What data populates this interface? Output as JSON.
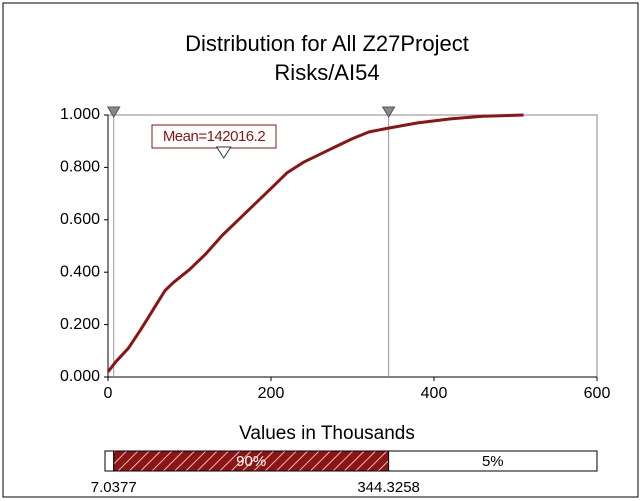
{
  "chart_data": {
    "type": "line",
    "title": [
      "Distribution for All Z27Project",
      "Risks/AI54"
    ],
    "xlabel": "Values in Thousands",
    "x": [
      0,
      10,
      25,
      40,
      50,
      60,
      70,
      80,
      100,
      120,
      140,
      160,
      180,
      200,
      220,
      240,
      260,
      280,
      300,
      320,
      344,
      380,
      420,
      460,
      510
    ],
    "series": [
      {
        "color": "#8b1414",
        "values": [
          0.02,
          0.06,
          0.11,
          0.18,
          0.23,
          0.28,
          0.33,
          0.36,
          0.41,
          0.47,
          0.54,
          0.6,
          0.66,
          0.72,
          0.78,
          0.82,
          0.85,
          0.88,
          0.91,
          0.935,
          0.95,
          0.97,
          0.985,
          0.995,
          1.0
        ]
      }
    ],
    "xlim": [
      0,
      600
    ],
    "xticks": [
      0,
      200,
      400,
      600
    ],
    "ylim": [
      0,
      1
    ],
    "yticks": [
      {
        "value": 0,
        "label": "0.000"
      },
      {
        "value": 0.2,
        "label": "0.200"
      },
      {
        "value": 0.4,
        "label": "0.400"
      },
      {
        "value": 0.6,
        "label": "0.600"
      },
      {
        "value": 0.8,
        "label": "0.800"
      },
      {
        "value": 1,
        "label": "1.000"
      }
    ],
    "mean": {
      "value": 142.0162,
      "label": "Mean=142016.2"
    },
    "markers": [
      7.0377,
      344.3258
    ],
    "bands": [
      {
        "value": 5,
        "label": null
      },
      {
        "value": 90,
        "label": "90%"
      },
      {
        "value": 5,
        "label": "5%"
      }
    ]
  }
}
